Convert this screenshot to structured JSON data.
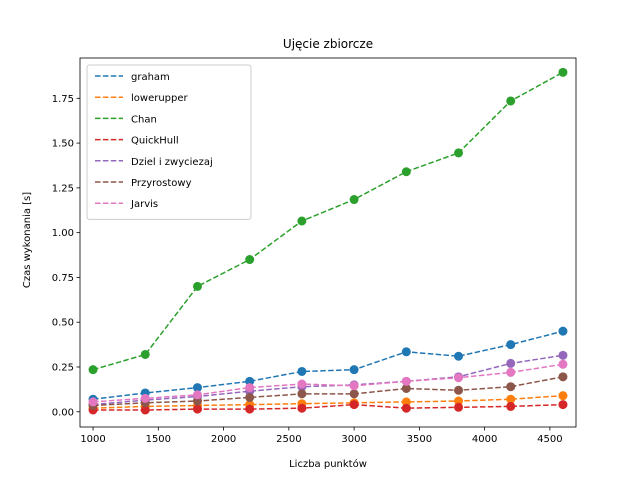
{
  "chart_data": {
    "type": "line",
    "title": "Ujęcie zbiorcze",
    "xlabel": "Liczba punktów",
    "ylabel": "Czas wykonania [s]",
    "xlim": [
      900,
      4700
    ],
    "ylim": [
      -0.085,
      1.975
    ],
    "xticks": [
      1000,
      1500,
      2000,
      2500,
      3000,
      3500,
      4000,
      4500
    ],
    "xtick_labels": [
      "1000",
      "1500",
      "2000",
      "2500",
      "3000",
      "3500",
      "4000",
      "4500"
    ],
    "yticks": [
      0,
      0.25,
      0.5,
      0.75,
      1.0,
      1.25,
      1.5,
      1.75
    ],
    "ytick_labels": [
      "0.00",
      "0.25",
      "0.50",
      "0.75",
      "1.00",
      "1.25",
      "1.50",
      "1.75"
    ],
    "grid": false,
    "legend_position": "top-left",
    "line_style": "dashed",
    "x": [
      1000,
      1400,
      1800,
      2200,
      2600,
      3000,
      3400,
      3800,
      4200,
      4600
    ],
    "series": [
      {
        "name": "graham",
        "color": "#1f77b4",
        "values": [
          0.07,
          0.105,
          0.135,
          0.17,
          0.225,
          0.235,
          0.335,
          0.31,
          0.375,
          0.45
        ]
      },
      {
        "name": "lowerupper",
        "color": "#ff7f0e",
        "values": [
          0.02,
          0.03,
          0.035,
          0.04,
          0.045,
          0.05,
          0.055,
          0.06,
          0.07,
          0.09
        ]
      },
      {
        "name": "Chan",
        "color": "#2ca02c",
        "values": [
          0.235,
          0.32,
          0.7,
          0.85,
          1.065,
          1.185,
          1.34,
          1.445,
          1.735,
          1.895
        ]
      },
      {
        "name": "QuickHull",
        "color": "#d62728",
        "values": [
          0.01,
          0.01,
          0.015,
          0.015,
          0.02,
          0.04,
          0.02,
          0.025,
          0.03,
          0.04
        ]
      },
      {
        "name": "Dziel i zwyciezaj",
        "color": "#9467bd",
        "values": [
          0.04,
          0.065,
          0.085,
          0.115,
          0.14,
          0.15,
          0.17,
          0.195,
          0.27,
          0.315
        ]
      },
      {
        "name": "Przyrostowy",
        "color": "#8c564b",
        "values": [
          0.035,
          0.05,
          0.06,
          0.08,
          0.1,
          0.1,
          0.13,
          0.12,
          0.14,
          0.195
        ]
      },
      {
        "name": "Jarvis",
        "color": "#e377c2",
        "values": [
          0.055,
          0.075,
          0.095,
          0.135,
          0.155,
          0.145,
          0.17,
          0.19,
          0.22,
          0.265
        ]
      }
    ]
  }
}
